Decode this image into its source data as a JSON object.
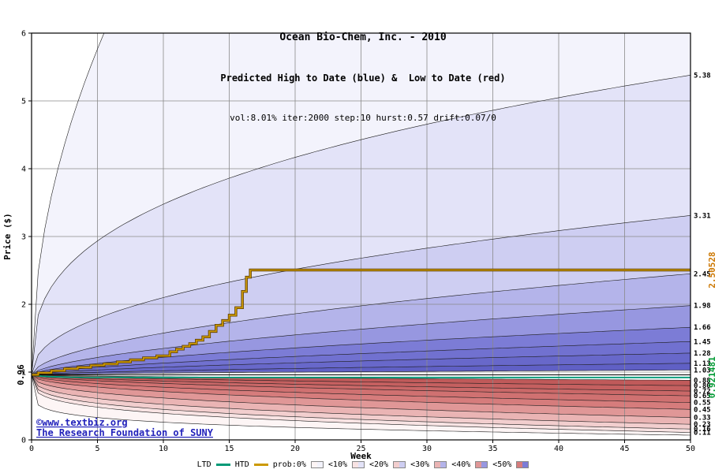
{
  "chart_data": {
    "type": "area",
    "title": "Ocean Bio-Chem, Inc. - 2010",
    "subtitle": "Predicted High to Date (blue) &  Low to Date (red)",
    "params": "vol:8.01% iter:2000 step:10 hurst:0.57 drift:0.07/0",
    "xlabel": "Week",
    "ylabel": "Price ($)",
    "xlim": [
      0,
      50
    ],
    "ylim": [
      0,
      6
    ],
    "x_ticks": [
      0,
      5,
      10,
      15,
      20,
      25,
      30,
      35,
      40,
      45,
      50
    ],
    "y_ticks": [
      0,
      1,
      2,
      3,
      4,
      5,
      6
    ],
    "grid": true,
    "start_price": 0.96,
    "start_price_label": "0.96",
    "htd_final": 2.50528,
    "htd_final_label": "2.50528",
    "ltd_final": 0.921481,
    "ltd_final_label": "0.921481",
    "high_bands": {
      "max_line": {
        "end": 6.0,
        "reach_week": 5.5,
        "p": 0.5
      },
      "boundaries": [
        {
          "end": 5.38,
          "p": 0.35,
          "label": "5.38"
        },
        {
          "end": 3.31,
          "p": 0.45,
          "label": "3.31"
        },
        {
          "end": 2.45,
          "p": 0.55,
          "label": "2.45"
        },
        {
          "end": 1.98,
          "p": 0.6,
          "label": "1.98"
        },
        {
          "end": 1.66,
          "p": 0.62,
          "label": "1.66"
        },
        {
          "end": 1.45,
          "p": 0.65,
          "label": "1.45"
        },
        {
          "end": 1.28,
          "p": 0.65,
          "label": "1.28"
        },
        {
          "end": 1.13,
          "p": 0.65,
          "label": "1.13"
        },
        {
          "end": 1.03,
          "p": 0.65,
          "label": "1.03"
        }
      ],
      "colors": [
        "#f3f3fc",
        "#e3e3f8",
        "#cecef2",
        "#b4b4ea",
        "#9797e0",
        "#7c7cd6",
        "#7171d0",
        "#6868ca",
        "#6060c5"
      ]
    },
    "low_bands": {
      "min_line": {
        "end": 0.07,
        "p": 0.15
      },
      "boundaries": [
        {
          "end": 0.11,
          "p": 0.25,
          "label": "0.11"
        },
        {
          "end": 0.16,
          "p": 0.28,
          "label": "0.16"
        },
        {
          "end": 0.23,
          "p": 0.32,
          "label": "0.23"
        },
        {
          "end": 0.33,
          "p": 0.38,
          "label": "0.33"
        },
        {
          "end": 0.45,
          "p": 0.45,
          "label": "0.45"
        },
        {
          "end": 0.55,
          "p": 0.5,
          "label": "0.55"
        },
        {
          "end": 0.65,
          "p": 0.55,
          "label": "0.65"
        },
        {
          "end": 0.72,
          "p": 0.6,
          "label": "0.72"
        },
        {
          "end": 0.8,
          "p": 0.62,
          "label": "0.80"
        },
        {
          "end": 0.88,
          "p": 0.65,
          "label": "0.88"
        }
      ],
      "colors": [
        "#fdf5f5",
        "#f8e3e3",
        "#f2cece",
        "#eab4b4",
        "#e09797",
        "#d67c7c",
        "#d07171",
        "#ca6868",
        "#c56060",
        "#c05a5a"
      ]
    },
    "htd_steps": [
      [
        0,
        0.96
      ],
      [
        0.5,
        0.99
      ],
      [
        1.5,
        1.02
      ],
      [
        2.5,
        1.05
      ],
      [
        3.5,
        1.07
      ],
      [
        4.5,
        1.1
      ],
      [
        5.5,
        1.12
      ],
      [
        6.5,
        1.15
      ],
      [
        7.5,
        1.18
      ],
      [
        8.5,
        1.21
      ],
      [
        9.5,
        1.24
      ],
      [
        10.5,
        1.3
      ],
      [
        11,
        1.34
      ],
      [
        11.5,
        1.38
      ],
      [
        12,
        1.42
      ],
      [
        12.5,
        1.47
      ],
      [
        13,
        1.52
      ],
      [
        13.5,
        1.6
      ],
      [
        14,
        1.69
      ],
      [
        14.5,
        1.76
      ],
      [
        15,
        1.84
      ],
      [
        15.5,
        1.95
      ],
      [
        16,
        2.19
      ],
      [
        16.3,
        2.4
      ],
      [
        16.6,
        2.50528
      ],
      [
        50,
        2.50528
      ]
    ],
    "ltd_points": [
      [
        0,
        0.96
      ],
      [
        0.3,
        0.95
      ],
      [
        0.8,
        0.94
      ],
      [
        1.5,
        0.932
      ],
      [
        2.5,
        0.927
      ],
      [
        4,
        0.9235
      ],
      [
        6,
        0.922
      ],
      [
        10,
        0.921481
      ],
      [
        50,
        0.921481
      ]
    ],
    "colors": {
      "htd": "#cc9900",
      "htd_dark": "#5a3a00",
      "htd_label": "#cc7700",
      "ltd": "#009977",
      "ltd_label": "#009933",
      "grid": "#8a8a8a",
      "boundary": "#1a1a1a",
      "axis": "#000000",
      "center_line": "#000000"
    }
  },
  "watermark": {
    "line1": "©www.textbiz.org",
    "line2": "The Research Foundation of SUNY",
    "color": "#2222bb"
  },
  "legend": {
    "ltd_label": "LTD",
    "htd_label": "HTD",
    "items": [
      {
        "label": "prob:0%",
        "red": "#fdf5f5",
        "blue": "#f3f3fc"
      },
      {
        "label": "<10%",
        "red": "#f8e3e3",
        "blue": "#e3e3f8"
      },
      {
        "label": "<20%",
        "red": "#f2cece",
        "blue": "#cecef2"
      },
      {
        "label": "<30%",
        "red": "#eab4b4",
        "blue": "#b4b4ea"
      },
      {
        "label": "<40%",
        "red": "#e09797",
        "blue": "#9797e0"
      },
      {
        "label": "<50%",
        "red": "#d67c7c",
        "blue": "#7c7cd6"
      }
    ]
  }
}
